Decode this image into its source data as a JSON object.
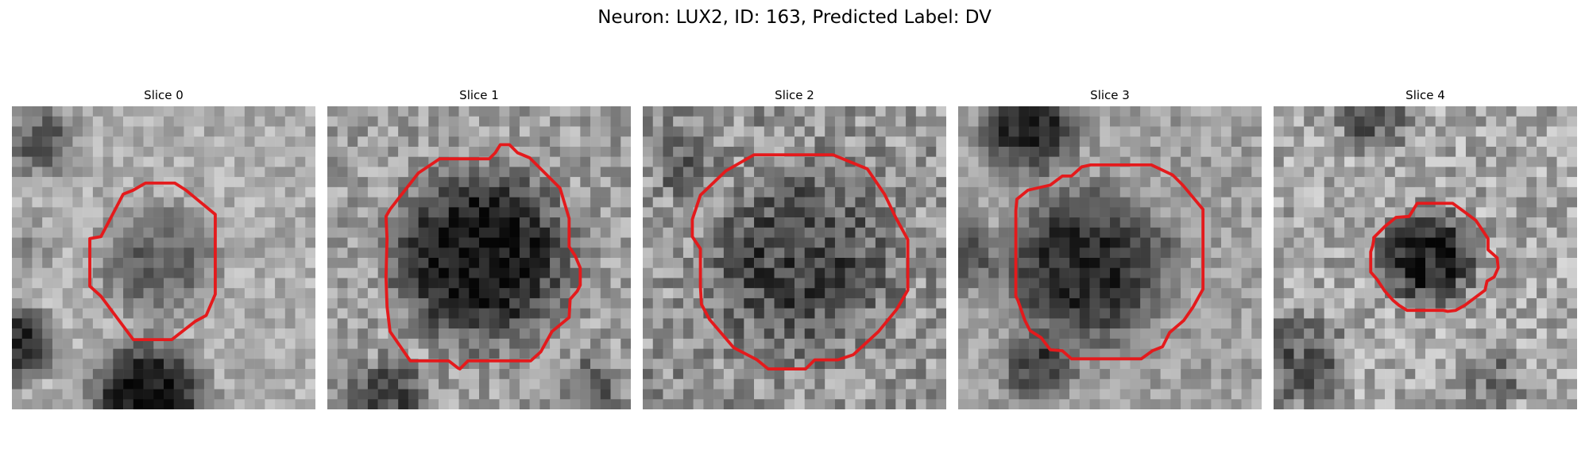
{
  "figure": {
    "title": "Neuron: LUX2, ID: 163, Predicted Label: DV",
    "roi_color": "#e41a1c",
    "colormap": "grayscale",
    "grid_size": 30
  },
  "slices": [
    {
      "title": "Slice 0"
    },
    {
      "title": "Slice 1"
    },
    {
      "title": "Slice 2"
    },
    {
      "title": "Slice 3"
    },
    {
      "title": "Slice 4"
    }
  ]
}
